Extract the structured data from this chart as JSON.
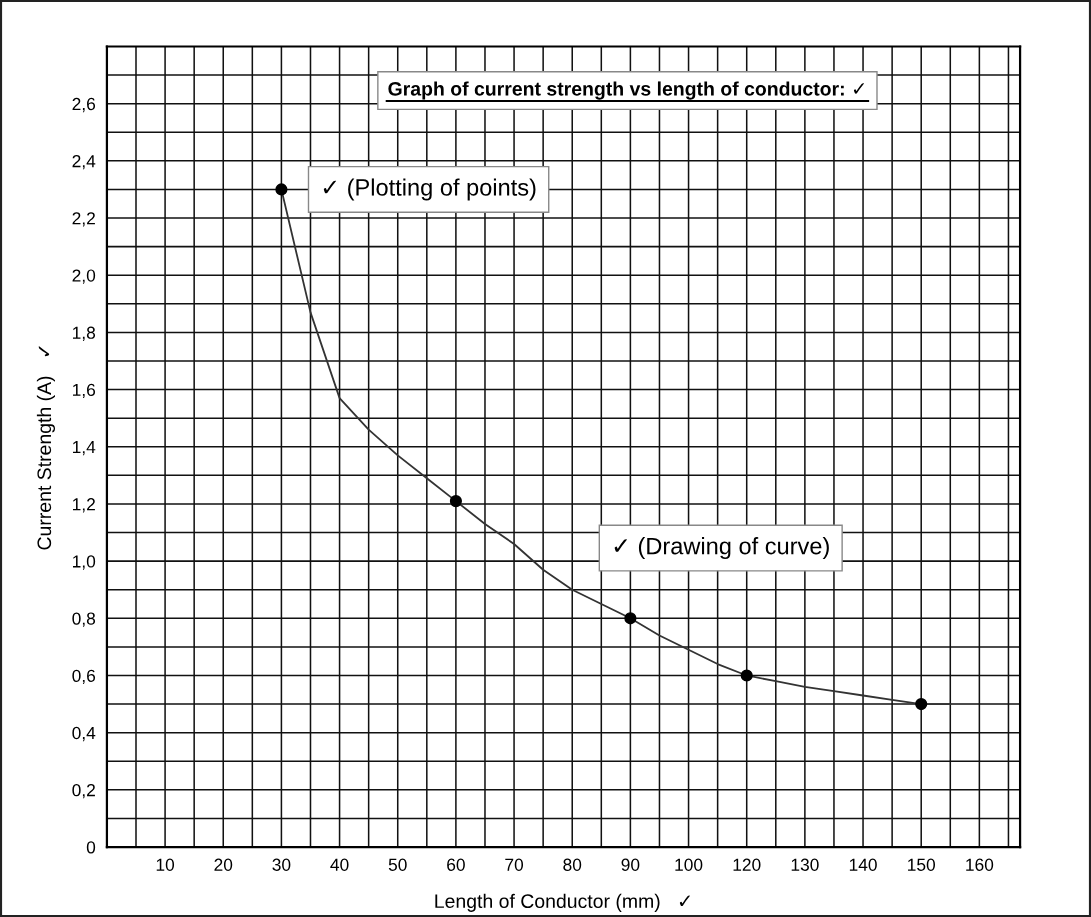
{
  "chart_data": {
    "type": "scatter",
    "title": "Graph of current strength vs length of conductor: ✓",
    "xlabel": "Length of Conductor (mm)   ✓",
    "ylabel": "Current Strength (A)   ✓",
    "annotations": [
      {
        "text": "✓ (Plotting of points)",
        "x": "30",
        "y": 2.3
      },
      {
        "text": "✓ (Drawing of curve)",
        "x": "80",
        "y": 0.9
      }
    ],
    "categories": [
      null,
      null,
      "10",
      null,
      "20",
      null,
      "30",
      null,
      "40",
      null,
      "50",
      null,
      "60",
      null,
      "70",
      null,
      "80",
      null,
      "90",
      null,
      "100",
      null,
      "120",
      null,
      "130",
      null,
      "140",
      null,
      "150",
      null,
      "160",
      null
    ],
    "ylim": [
      0,
      2.8
    ],
    "yticks": [
      {
        "value": 0,
        "label": "0"
      },
      {
        "value": 0.1,
        "label": null
      },
      {
        "value": 0.2,
        "label": "0,2"
      },
      {
        "value": 0.3,
        "label": null
      },
      {
        "value": 0.4,
        "label": "0,4"
      },
      {
        "value": 0.5,
        "label": null
      },
      {
        "value": 0.6,
        "label": "0,6"
      },
      {
        "value": 0.7,
        "label": null
      },
      {
        "value": 0.8,
        "label": "0,8"
      },
      {
        "value": 0.9,
        "label": null
      },
      {
        "value": 1.0,
        "label": "1,0"
      },
      {
        "value": 1.1,
        "label": null
      },
      {
        "value": 1.2,
        "label": "1,2"
      },
      {
        "value": 1.3,
        "label": null
      },
      {
        "value": 1.4,
        "label": "1,4"
      },
      {
        "value": 1.5,
        "label": null
      },
      {
        "value": 1.6,
        "label": "1,6"
      },
      {
        "value": 1.7,
        "label": null
      },
      {
        "value": 1.8,
        "label": "1,8"
      },
      {
        "value": 1.9,
        "label": null
      },
      {
        "value": 2.0,
        "label": "2,0"
      },
      {
        "value": 2.1,
        "label": null
      },
      {
        "value": 2.2,
        "label": "2,2"
      },
      {
        "value": 2.3,
        "label": null
      },
      {
        "value": 2.4,
        "label": "2,4"
      },
      {
        "value": 2.5,
        "label": null
      },
      {
        "value": 2.6,
        "label": "2,6"
      },
      {
        "value": 2.7,
        "label": null
      }
    ],
    "grid": true,
    "series": [
      {
        "type": "line",
        "color": "#333333",
        "marker": "none",
        "values": [
          null,
          null,
          null,
          null,
          null,
          null,
          2.3,
          1.87,
          1.57,
          1.46,
          1.37,
          1.29,
          1.21,
          1.13,
          1.06,
          0.97,
          0.9,
          0.85,
          0.8,
          0.74,
          0.69,
          0.64,
          0.6,
          0.58,
          0.56,
          0.545,
          0.53,
          0.515,
          0.5,
          0.5,
          null,
          null
        ]
      },
      {
        "color": "#000000",
        "marker": "circle",
        "x": [
          "30",
          "60",
          "90",
          "120",
          "150"
        ],
        "values": [
          2.3,
          1.21,
          0.8,
          0.6,
          0.5
        ]
      }
    ]
  }
}
